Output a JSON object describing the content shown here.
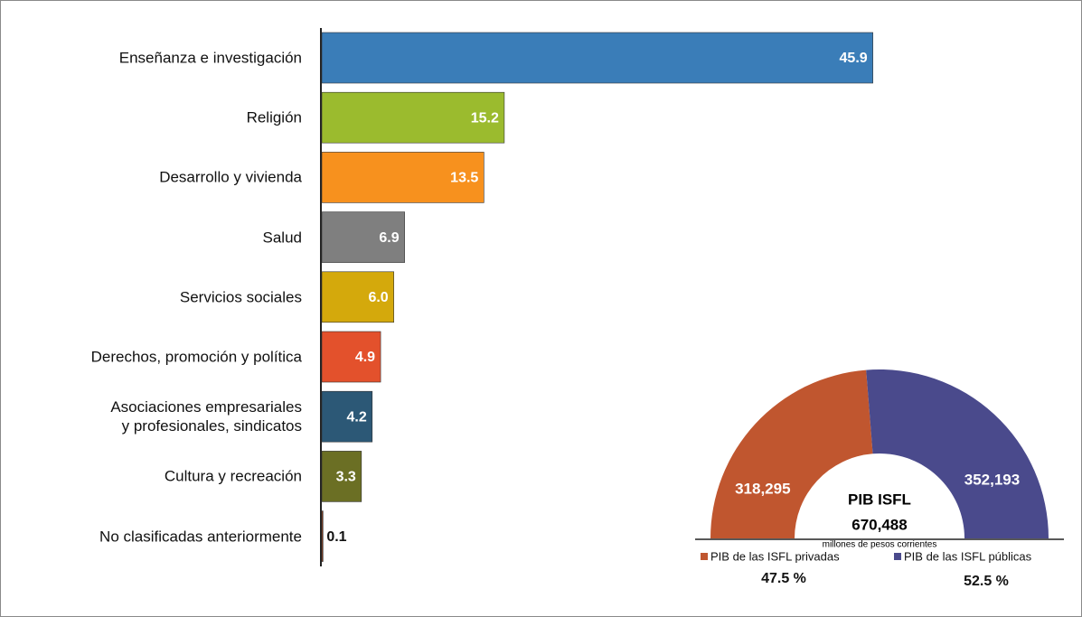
{
  "chart_data": [
    {
      "type": "bar",
      "categories": [
        "Enseñanza e investigación",
        "Religión",
        "Desarrollo y vivienda",
        "Salud",
        "Servicios sociales",
        "Derechos, promoción y política",
        "Asociaciones empresariales\ny profesionales, sindicatos",
        "Cultura y recreación",
        "No clasificadas anteriormente"
      ],
      "values": [
        45.9,
        15.2,
        13.5,
        6.9,
        6.0,
        4.9,
        4.2,
        3.3,
        0.1
      ],
      "value_labels": [
        "45.9",
        "15.2",
        "13.5",
        "6.9",
        "6.0",
        "4.9",
        "4.2",
        "3.3",
        "0.1"
      ],
      "colors": [
        "#3a7db8",
        "#9bbb2e",
        "#f7911e",
        "#7f7f7f",
        "#d4a90c",
        "#e3512c",
        "#2c5876",
        "#6b6f24",
        "#8b3a1a"
      ],
      "xlim": [
        0,
        46
      ]
    },
    {
      "type": "pie",
      "half": true,
      "series": [
        {
          "name": "PIB de las ISFL privadas",
          "color": "#c0562f",
          "value": 318295,
          "value_label": "318,295",
          "share": "47.5 %"
        },
        {
          "name": "PIB de las ISFL públicas",
          "color": "#4a4a8c",
          "value": 352193,
          "value_label": "352,193",
          "share": "52.5 %"
        }
      ],
      "center_title": "PIB ISFL",
      "center_value": "670,488",
      "center_note": "millones de pesos corrientes"
    }
  ]
}
